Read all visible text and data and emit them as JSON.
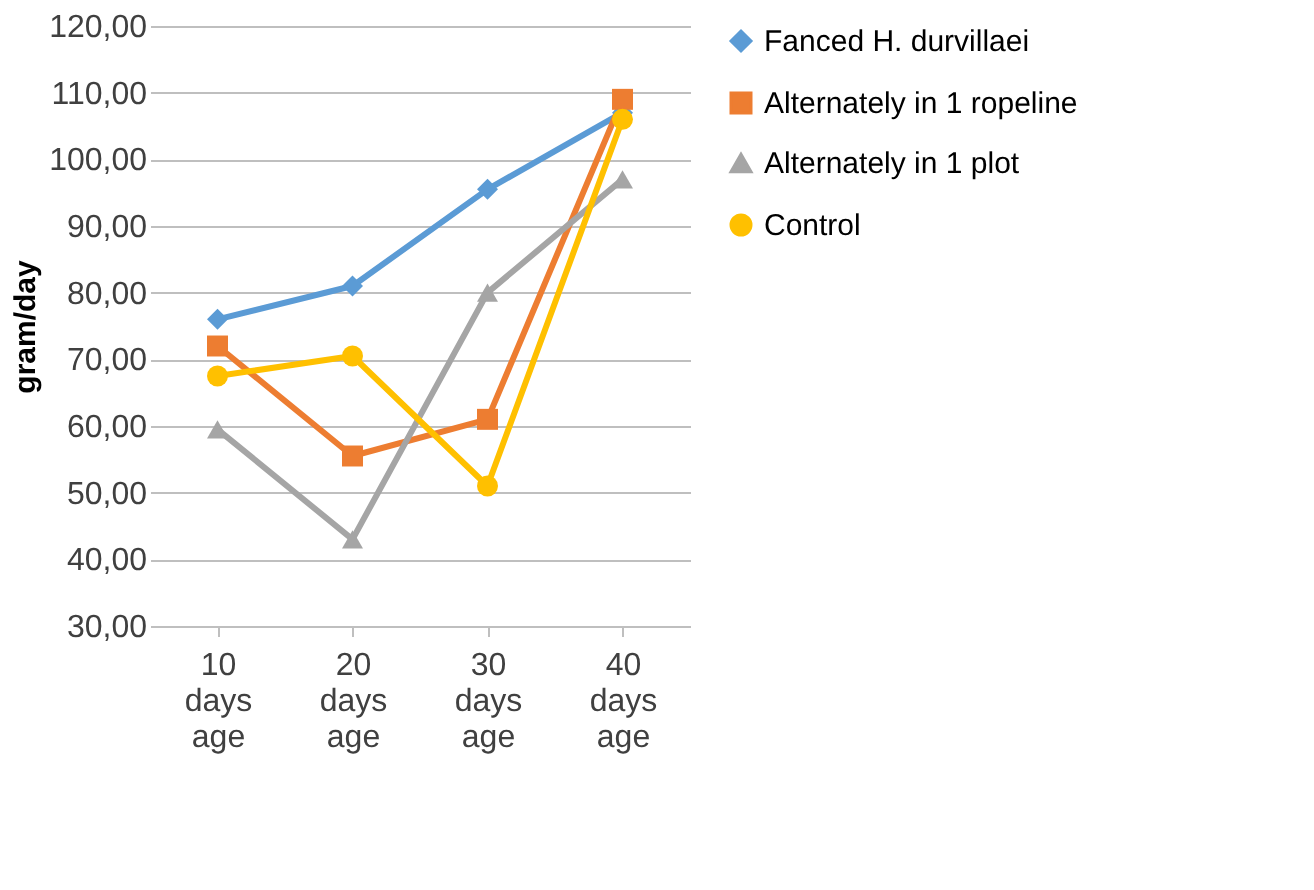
{
  "chart_data": {
    "type": "line",
    "ylabel": "gram/day",
    "categories": [
      "10 days age",
      "20 days age",
      "30 days age",
      "40 days age"
    ],
    "series": [
      {
        "name": "Fanced H. durvillaei",
        "color": "#5b9bd5",
        "marker": "diamond",
        "values": [
          76,
          81,
          95.5,
          107
        ]
      },
      {
        "name": "Alternately in 1 ropeline",
        "color": "#ed7d31",
        "marker": "square",
        "values": [
          72,
          55.5,
          61,
          109
        ]
      },
      {
        "name": "Alternately in 1 plot",
        "color": "#a5a5a5",
        "marker": "triangle",
        "values": [
          59.5,
          43,
          80,
          97
        ]
      },
      {
        "name": "Control",
        "color": "#ffc000",
        "marker": "circle",
        "values": [
          67.5,
          70.5,
          51,
          106
        ]
      }
    ],
    "ylim": [
      30,
      120
    ],
    "yticks": [
      {
        "value": 30,
        "label": "30,00"
      },
      {
        "value": 40,
        "label": "40,00"
      },
      {
        "value": 50,
        "label": "50,00"
      },
      {
        "value": 60,
        "label": "60,00"
      },
      {
        "value": 70,
        "label": "70,00"
      },
      {
        "value": 80,
        "label": "80,00"
      },
      {
        "value": 90,
        "label": "90,00"
      },
      {
        "value": 100,
        "label": "100,00"
      },
      {
        "value": 110,
        "label": "110,00"
      },
      {
        "value": 120,
        "label": "120,00"
      }
    ],
    "grid": "y",
    "legend": "right"
  }
}
